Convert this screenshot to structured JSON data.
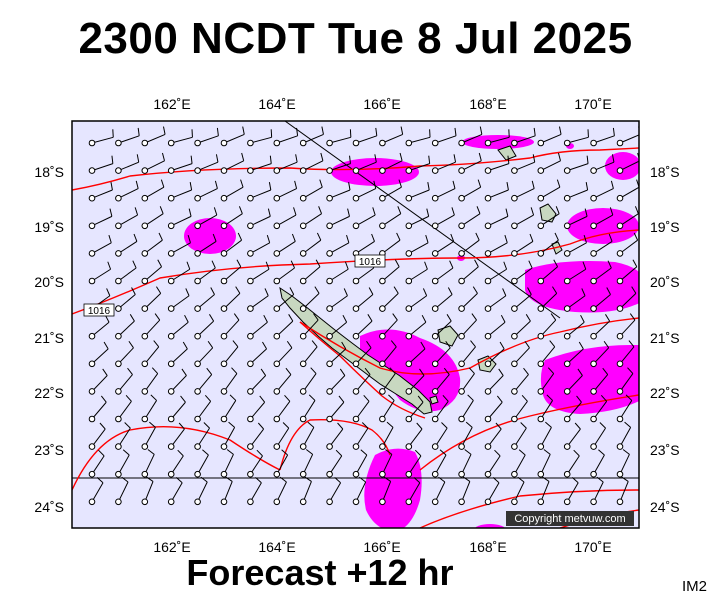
{
  "title": "2300 NCDT Tue 8 Jul 2025",
  "footer": "Forecast +12 hr",
  "image_code": "IM2",
  "copyright": "Copyright metvuw.com",
  "top_lon_labels": [
    "162˚E",
    "164˚E",
    "166˚E",
    "168˚E",
    "170˚E"
  ],
  "bottom_lon_labels": [
    "162˚E",
    "164˚E",
    "166˚E",
    "168˚E",
    "170˚E"
  ],
  "left_lat_labels": [
    "18˚S",
    "19˚S",
    "20˚S",
    "21˚S",
    "22˚S",
    "23˚S",
    "24˚S"
  ],
  "right_lat_labels": [
    "18˚S",
    "19˚S",
    "20˚S",
    "21˚S",
    "22˚S",
    "23˚S",
    "24˚S"
  ],
  "isobar_labels": [
    "1016",
    "1016"
  ],
  "colors": {
    "ocean": "#e6e6ff",
    "rain": "#ff00ff",
    "isobar": "#ff0000",
    "land": "#c8d8c0",
    "wind": "#000000",
    "frame": "#000000"
  }
}
